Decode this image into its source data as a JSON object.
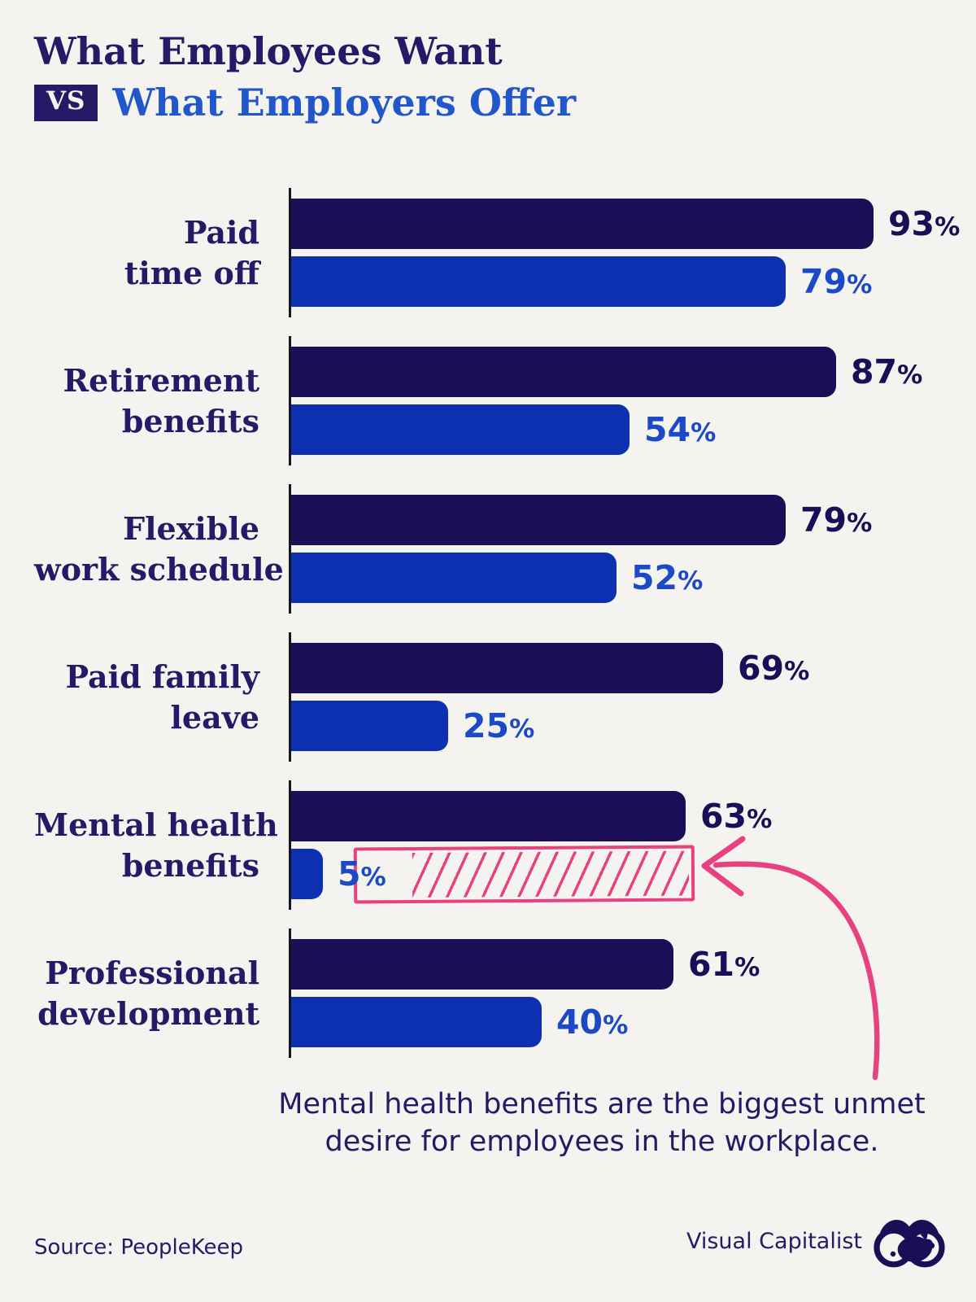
{
  "title": {
    "line1": "What Employees Want",
    "vs_label": "VS",
    "line2": "What Employers Offer"
  },
  "chart_data": {
    "type": "bar",
    "orientation": "horizontal",
    "title": "What Employees Want VS What Employers Offer",
    "categories": [
      "Paid time off",
      "Retirement benefits",
      "Flexible work schedule",
      "Paid family leave",
      "Mental health benefits",
      "Professional development"
    ],
    "category_lines": [
      [
        "Paid",
        "time off"
      ],
      [
        "Retirement",
        "benefits"
      ],
      [
        "Flexible",
        "work schedule"
      ],
      [
        "Paid family",
        "leave"
      ],
      [
        "Mental health",
        "benefits"
      ],
      [
        "Professional",
        "development"
      ]
    ],
    "series": [
      {
        "name": "What employees want",
        "color": "#1c0d57",
        "values": [
          93,
          87,
          79,
          69,
          63,
          61
        ]
      },
      {
        "name": "What employers offer",
        "color": "#0c30b0",
        "values": [
          79,
          54,
          52,
          25,
          5,
          40
        ]
      }
    ],
    "value_suffix": "%",
    "xlim": [
      0,
      100
    ],
    "grid": false,
    "legend": "none",
    "highlight": {
      "category_index": 4,
      "type": "hatched-gap",
      "from": 5,
      "to": 63,
      "color": "#e84180"
    }
  },
  "annotation": {
    "line1": "Mental health benefits are the biggest unmet",
    "line2": "desire for employees in the workplace."
  },
  "footer": {
    "source": "Source: PeopleKeep",
    "brand": "Visual Capitalist"
  },
  "colors": {
    "background": "#f4f3ef",
    "navy_bar": "#1c0d57",
    "blue_bar": "#0c30b0",
    "title_navy": "#241a66",
    "title_blue": "#2257cb",
    "value_blue": "#1c49c5",
    "pink": "#e84180",
    "axis": "#15151f"
  }
}
